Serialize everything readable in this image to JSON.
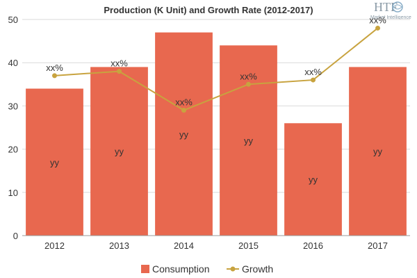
{
  "logo": {
    "mark": "HTF",
    "tagline": "Market Intelligence"
  },
  "chart_data": {
    "type": "bar",
    "title": "Production (K Unit) and Growth Rate (2012-2017)",
    "categories": [
      "2012",
      "2013",
      "2014",
      "2015",
      "2016",
      "2017"
    ],
    "ylim": [
      0,
      50
    ],
    "yticks": [
      0,
      10,
      20,
      30,
      40,
      50
    ],
    "grid": true,
    "legend": "bottom",
    "series": [
      {
        "name": "Consumption",
        "kind": "bar",
        "color": "#e8684f",
        "values": [
          34,
          39,
          47,
          44,
          26,
          39
        ],
        "labels": [
          "yy",
          "yy",
          "yy",
          "yy",
          "yy",
          "yy"
        ]
      },
      {
        "name": "Growth",
        "kind": "line",
        "color": "#c8a33f",
        "values": [
          37,
          38,
          29,
          35,
          36,
          48
        ],
        "labels": [
          "xx%",
          "xx%",
          "xx%",
          "xx%",
          "xx%",
          "xx%"
        ]
      }
    ]
  }
}
